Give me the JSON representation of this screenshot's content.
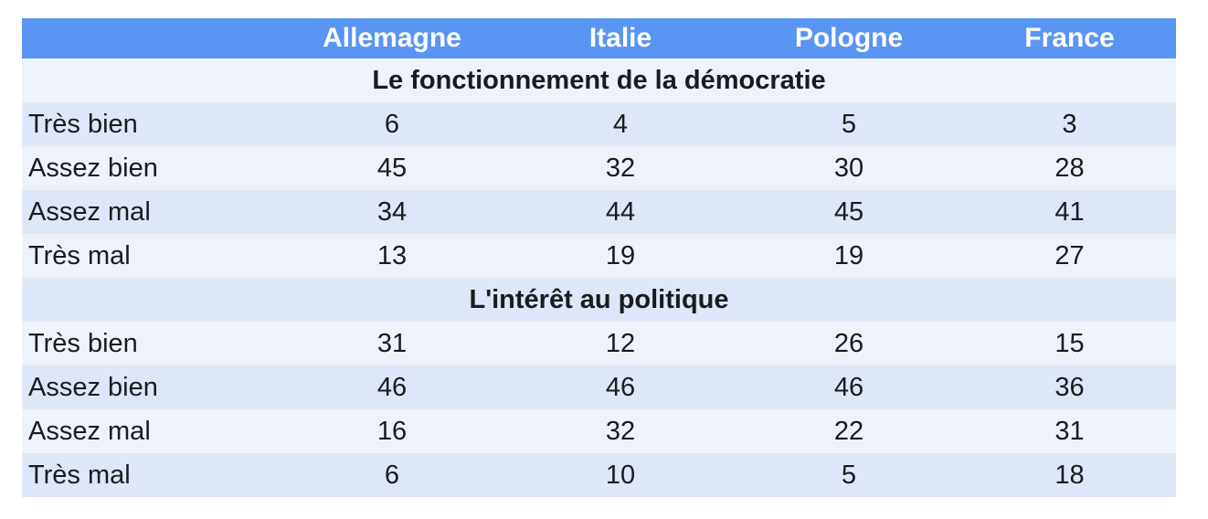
{
  "chart_data": {
    "type": "table",
    "corner_cell": "",
    "columns": [
      "Allemagne",
      "Italie",
      "Pologne",
      "France"
    ],
    "sections": [
      {
        "title": "Le fonctionnement de la démocratie",
        "rows": [
          {
            "label": "Très bien",
            "values": [
              6,
              4,
              5,
              3
            ]
          },
          {
            "label": "Assez bien",
            "values": [
              45,
              32,
              30,
              28
            ]
          },
          {
            "label": "Assez mal",
            "values": [
              34,
              44,
              45,
              41
            ]
          },
          {
            "label": "Très mal",
            "values": [
              13,
              19,
              19,
              27
            ]
          }
        ]
      },
      {
        "title": "L'intérêt au politique",
        "rows": [
          {
            "label": "Très bien",
            "values": [
              31,
              12,
              26,
              15
            ]
          },
          {
            "label": "Assez bien",
            "values": [
              46,
              46,
              46,
              36
            ]
          },
          {
            "label": "Assez mal",
            "values": [
              16,
              32,
              22,
              31
            ]
          },
          {
            "label": "Très mal",
            "values": [
              6,
              10,
              5,
              18
            ]
          }
        ]
      }
    ]
  },
  "colors": {
    "header_bg": "#5995f2",
    "header_text": "#ffffff",
    "row_light": "#eef2fb",
    "row_dark": "#dde7f8",
    "body_text": "#1b1b1d",
    "page_bg": "#ffffff"
  }
}
